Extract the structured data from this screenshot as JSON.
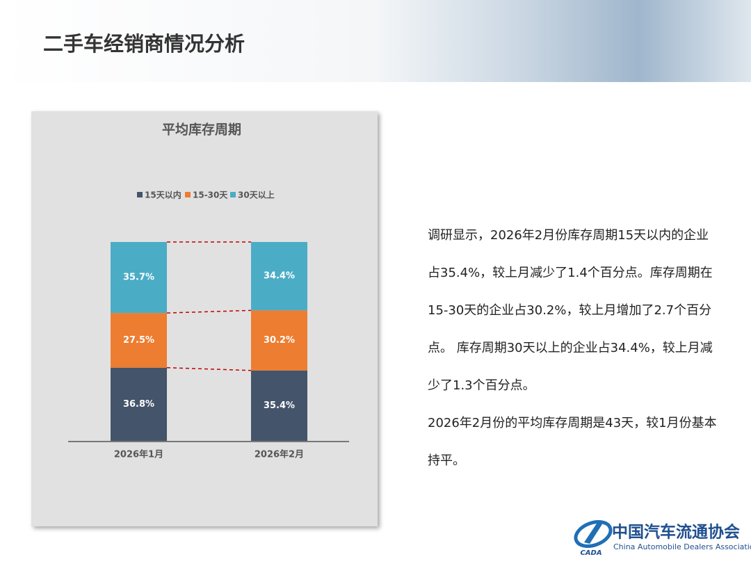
{
  "header": {
    "title": "二手车经销商情况分析"
  },
  "chart_data": {
    "type": "stacked_bar",
    "title": "平均库存周期",
    "categories": [
      "2026年1月",
      "2026年2月"
    ],
    "series": [
      {
        "name": "15天以内",
        "color": "#44546a",
        "values": [
          36.8,
          35.4
        ],
        "value_labels": [
          "36.8%",
          "35.4%"
        ]
      },
      {
        "name": "15-30天",
        "color": "#ed7d31",
        "values": [
          27.5,
          30.2
        ],
        "value_labels": [
          "27.5%",
          "30.2%"
        ]
      },
      {
        "name": "30天以上",
        "color": "#4bacc6",
        "values": [
          35.7,
          34.4
        ],
        "value_labels": [
          "35.7%",
          "34.4%"
        ]
      }
    ],
    "legend": "top",
    "connector_color": "#c00000"
  },
  "paragraphs": [
    "调研显示，2026年2月份库存周期15天以内的企业占35.4%，较上月减少了1.4个百分点。库存周期在15-30天的企业占30.2%，较上月增加了2.7个百分点。 库存周期30天以上的企业占34.4%，较上月减少了1.3个百分点。",
    "2026年2月份的平均库存周期是43天，较1月份基本持平。"
  ],
  "logo": {
    "name": "中国汽车流通协会",
    "english": "China Automobile Dealers Association",
    "abbr": "CADA"
  }
}
